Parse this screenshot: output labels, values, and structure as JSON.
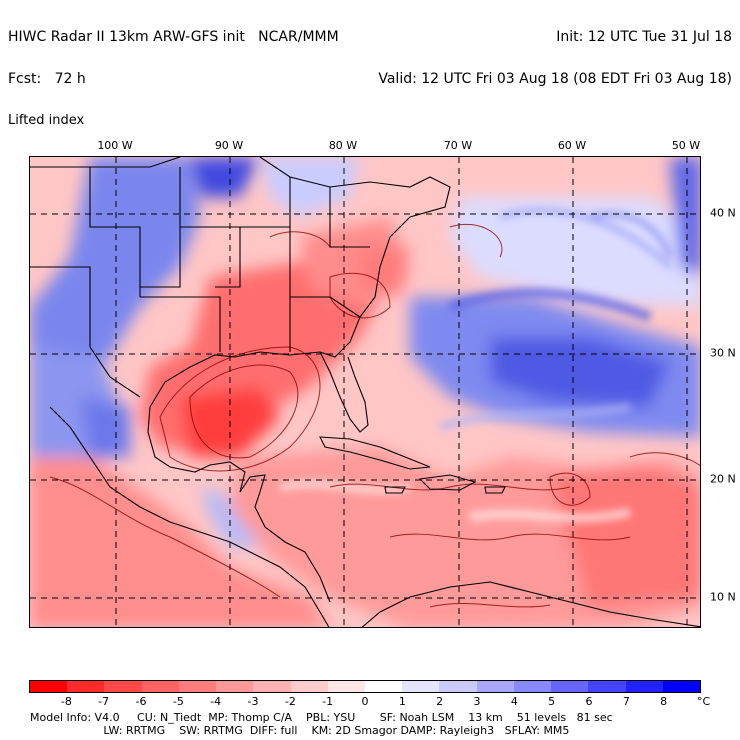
{
  "header": {
    "line1_left": "HIWC Radar II 13km ARW-GFS init   NCAR/MMM",
    "line1_right": "Init: 12 UTC Tue 31 Jul 18",
    "line2_left": "Fcst:   72 h",
    "line2_right": "Valid: 12 UTC Fri 03 Aug 18 (08 EDT Fri 03 Aug 18)",
    "line3_left": "Lifted index"
  },
  "map": {
    "longitude_labels": [
      "100 W",
      "90 W",
      "80 W",
      "70 W",
      "60 W",
      "50 W"
    ],
    "latitude_labels": [
      "40 N",
      "30 N",
      "20 N",
      "10 N"
    ],
    "features": [
      "continental-united-states",
      "gulf-of-mexico",
      "mexico",
      "central-america",
      "cuba",
      "caribbean-sea",
      "atlantic-ocean"
    ]
  },
  "colorbar": {
    "unit": "°C",
    "ticks": [
      "-8",
      "-7",
      "-6",
      "-5",
      "-4",
      "-3",
      "-2",
      "-1",
      "0",
      "1",
      "2",
      "3",
      "4",
      "5",
      "6",
      "7",
      "8"
    ],
    "colors": [
      "#ff0000",
      "#ff2a2a",
      "#ff4848",
      "#ff6262",
      "#ff7c7c",
      "#ff9898",
      "#ffb2b2",
      "#ffcccc",
      "#ffe6e6",
      "#ffffff",
      "#e4e4ff",
      "#cacaff",
      "#a8a8ff",
      "#8888ff",
      "#6666ff",
      "#4444ff",
      "#2222ff",
      "#0000ff"
    ]
  },
  "footer": {
    "line1": "Model Info: V4.0     CU: N_Tiedt  MP: Thomp C/A    PBL: YSU       SF: Noah LSM    13 km    51 levels   81 sec",
    "line2": "                     LW: RRTMG    SW: RRTMG  DIFF: full    KM: 2D Smagor DAMP: Rayleigh3   SFLAY: MM5"
  }
}
